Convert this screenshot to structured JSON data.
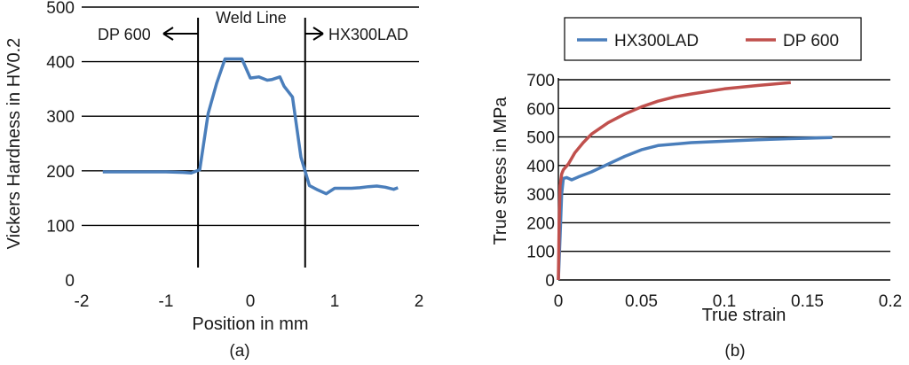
{
  "chart_data": [
    {
      "type": "line",
      "panel_label": "(a)",
      "xlabel": "Position in mm",
      "ylabel": "Vickers Hardness in HV0.2",
      "xlim": [
        -2,
        2
      ],
      "ylim": [
        0,
        500
      ],
      "x_ticks": [
        -2,
        -1,
        0,
        1,
        2
      ],
      "y_ticks": [
        0,
        100,
        200,
        300,
        400,
        500
      ],
      "grid": "horizontal",
      "annotations": [
        {
          "text": "Weld Line"
        },
        {
          "text": "DP 600"
        },
        {
          "text": "HX300LAD"
        }
      ],
      "weld_line_positions": [
        -0.62,
        0.65
      ],
      "series": [
        {
          "color": "#4a7ebb",
          "x": [
            -1.75,
            -1.5,
            -1.25,
            -1.0,
            -0.8,
            -0.7,
            -0.6,
            -0.5,
            -0.4,
            -0.3,
            -0.2,
            -0.1,
            0.0,
            0.1,
            0.2,
            0.25,
            0.35,
            0.4,
            0.5,
            0.6,
            0.7,
            0.8,
            0.9,
            1.0,
            1.1,
            1.2,
            1.3,
            1.4,
            1.5,
            1.6,
            1.7,
            1.75
          ],
          "y": [
            198,
            198,
            198,
            198,
            197,
            196,
            202,
            305,
            360,
            405,
            405,
            405,
            370,
            372,
            366,
            367,
            372,
            355,
            335,
            225,
            173,
            165,
            158,
            168,
            168,
            168,
            169,
            171,
            172,
            170,
            166,
            169
          ]
        }
      ]
    },
    {
      "type": "line",
      "panel_label": "(b)",
      "xlabel": "True strain",
      "ylabel": "True stress in MPa",
      "xlim": [
        0,
        0.2
      ],
      "ylim": [
        0,
        700
      ],
      "x_ticks": [
        0,
        0.05,
        0.1,
        0.15,
        0.2
      ],
      "y_ticks": [
        0,
        100,
        200,
        300,
        400,
        500,
        600,
        700
      ],
      "grid": "horizontal",
      "legend_position": "top",
      "series": [
        {
          "name": "HX300LAD",
          "color": "#4a7ebb",
          "x": [
            0.0,
            0.001,
            0.002,
            0.003,
            0.005,
            0.008,
            0.012,
            0.02,
            0.03,
            0.04,
            0.05,
            0.06,
            0.08,
            0.1,
            0.12,
            0.14,
            0.165
          ],
          "y": [
            0,
            150,
            300,
            355,
            358,
            350,
            360,
            378,
            405,
            432,
            455,
            470,
            480,
            485,
            490,
            494,
            498
          ]
        },
        {
          "name": "DP 600",
          "color": "#c0504d",
          "x": [
            0.0,
            0.0005,
            0.001,
            0.002,
            0.003,
            0.006,
            0.01,
            0.015,
            0.02,
            0.03,
            0.04,
            0.05,
            0.06,
            0.07,
            0.08,
            0.1,
            0.12,
            0.14
          ],
          "y": [
            0,
            200,
            330,
            370,
            385,
            405,
            445,
            480,
            510,
            550,
            580,
            605,
            625,
            640,
            650,
            668,
            680,
            690
          ]
        }
      ]
    }
  ]
}
